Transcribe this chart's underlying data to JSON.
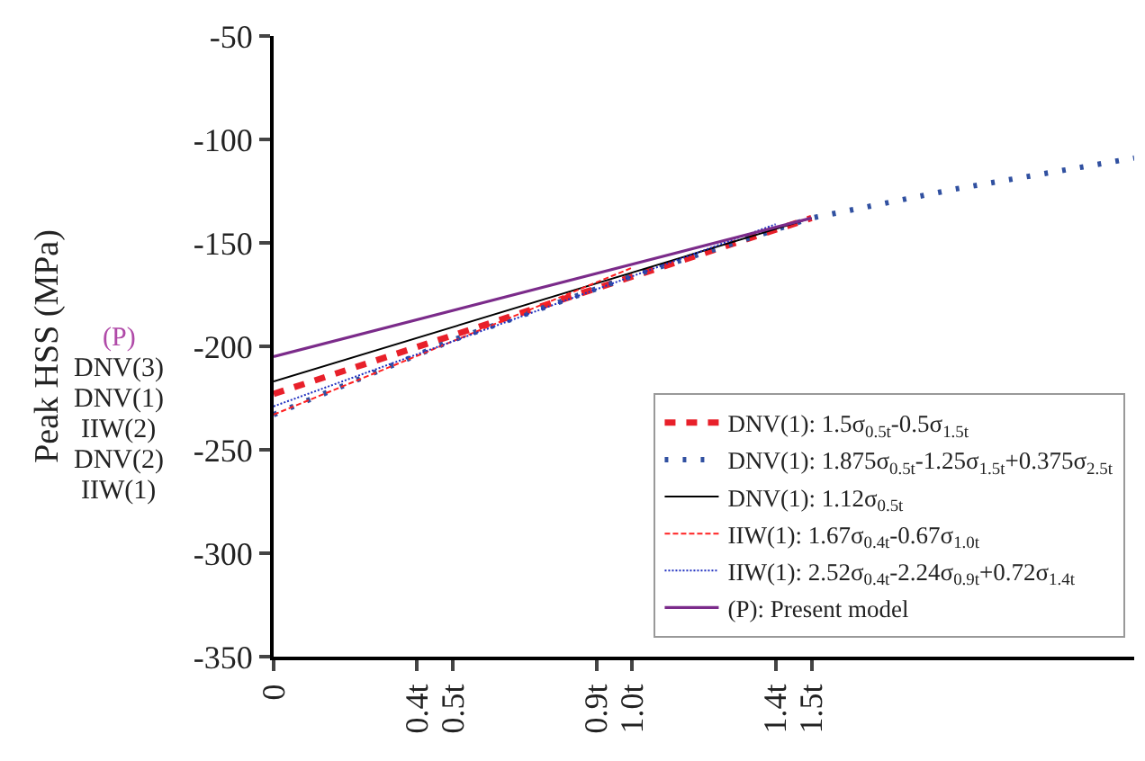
{
  "chart_data": {
    "type": "line",
    "ylabel": "Peak HSS (MPa)",
    "xlim": [
      0,
      2.4
    ],
    "xticks": [
      0,
      {
        "value": 0.4,
        "label": "0.4t"
      },
      {
        "value": 0.5,
        "label": "0.5t"
      },
      {
        "value": 0.9,
        "label": "0.9t"
      },
      {
        "value": 1.0,
        "label": "1.0t"
      },
      {
        "value": 1.4,
        "label": "1.4t"
      },
      {
        "value": 1.5,
        "label": "1.5t"
      }
    ],
    "ylim": [
      -350,
      -50
    ],
    "yticks": [
      -350,
      -300,
      -250,
      -200,
      -150,
      -100,
      -50
    ],
    "grid": false,
    "legend": "bottom right",
    "marker": "none",
    "annotations": [
      "(P)",
      "DNV(3)",
      "DNV(1)",
      "IIW(2)",
      "DNV(2)",
      "IIW(1)"
    ],
    "series": [
      {
        "name": "DNV(1): 1.5σ$_{0.5t}$-0.5σ$_{1.5t}$",
        "color": "#e8202a",
        "line_style": "dashed",
        "x": [
          0,
          1.5
        ],
        "values": [
          -223,
          -138
        ]
      },
      {
        "name": "DNV(1): 1.875σ$_{0.5t}$-1.25σ$_{1.5t}$+0.375σ$_{2.5t}$",
        "color": "#3050a0",
        "line_style": "dotted",
        "x": [
          0,
          0.5,
          1.0,
          1.5,
          1.9,
          2.4
        ],
        "values": [
          -233,
          -197,
          -166,
          -138,
          -124,
          -109
        ]
      },
      {
        "name": "DNV(1): 1.12σ$_{0.5t}$",
        "color": "#000000",
        "line_style": "solid",
        "x": [
          0,
          1.5
        ],
        "values": [
          -217,
          -138
        ]
      },
      {
        "name": "IIW(1): 1.67σ$_{0.4t}$-0.67σ$_{1.0t}$",
        "color": "#ff2020",
        "line_style": "dashed",
        "x": [
          0,
          1.0
        ],
        "values": [
          -233,
          -162
        ]
      },
      {
        "name": "IIW(1): 2.52σ$_{0.4t}$-2.24σ$_{0.9t}$+0.72σ$_{1.4t}$",
        "color": "#2030c0",
        "line_style": "dotted",
        "x": [
          0,
          1.4
        ],
        "values": [
          -229,
          -141
        ]
      },
      {
        "name": "(P): Present model",
        "color": "#7b2b8a",
        "line_style": "solid",
        "x": [
          0,
          1.5
        ],
        "values": [
          -205,
          -138
        ]
      }
    ]
  }
}
